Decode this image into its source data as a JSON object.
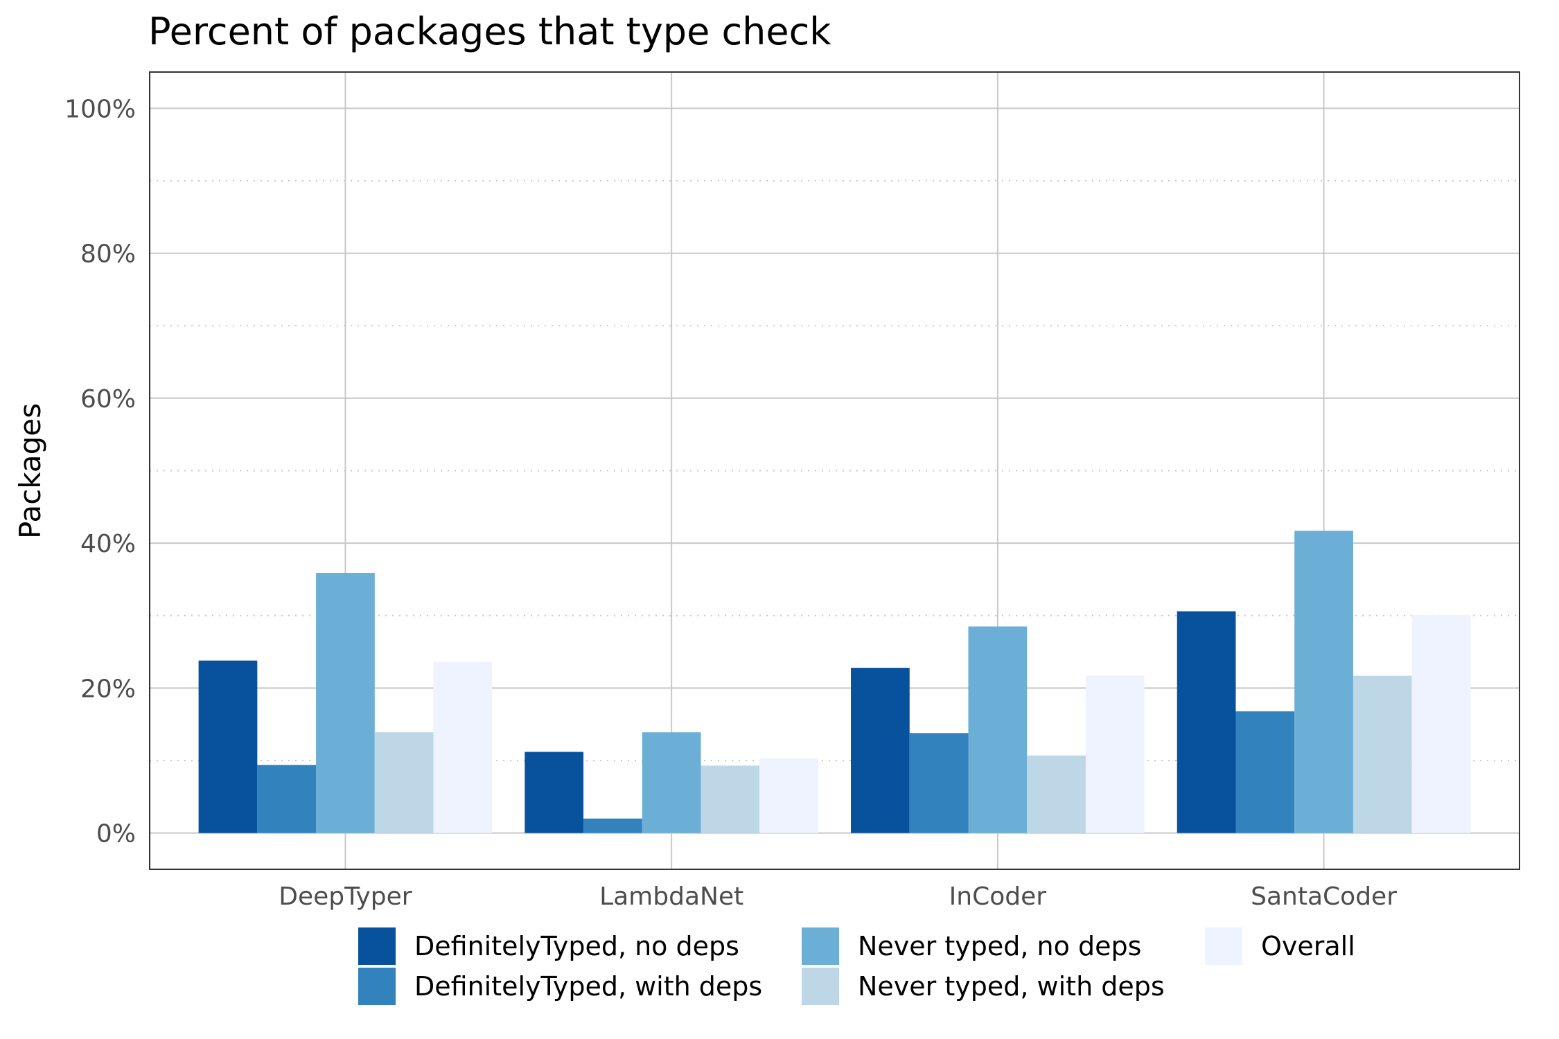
{
  "chart_data": {
    "type": "bar",
    "title": "Percent of packages that type check",
    "xlabel": "",
    "ylabel": "Packages",
    "ylim": [
      -5,
      105
    ],
    "yticks": [
      0,
      20,
      40,
      60,
      80,
      100
    ],
    "ytick_labels": [
      "0%",
      "20%",
      "40%",
      "60%",
      "80%",
      "100%"
    ],
    "minor_grid": [
      10,
      30,
      50,
      70,
      90
    ],
    "grid": true,
    "legend_position": "bottom",
    "categories": [
      "DeepTyper",
      "LambdaNet",
      "InCoder",
      "SantaCoder"
    ],
    "series": [
      {
        "name": "DefinitelyTyped, no deps",
        "color": "#08519c",
        "values": [
          23.8,
          11.2,
          22.8,
          30.6
        ]
      },
      {
        "name": "DefinitelyTyped, with deps",
        "color": "#3182bd",
        "values": [
          9.4,
          2.0,
          13.8,
          16.8
        ]
      },
      {
        "name": "Never typed, no deps",
        "color": "#6baed6",
        "values": [
          35.9,
          13.9,
          28.5,
          41.7
        ]
      },
      {
        "name": "Never typed, with deps",
        "color": "#bdd7e7",
        "values": [
          13.9,
          9.3,
          10.7,
          21.7
        ]
      },
      {
        "name": "Overall",
        "color": "#eff3ff",
        "values": [
          23.6,
          10.3,
          21.7,
          30.1
        ]
      }
    ]
  }
}
